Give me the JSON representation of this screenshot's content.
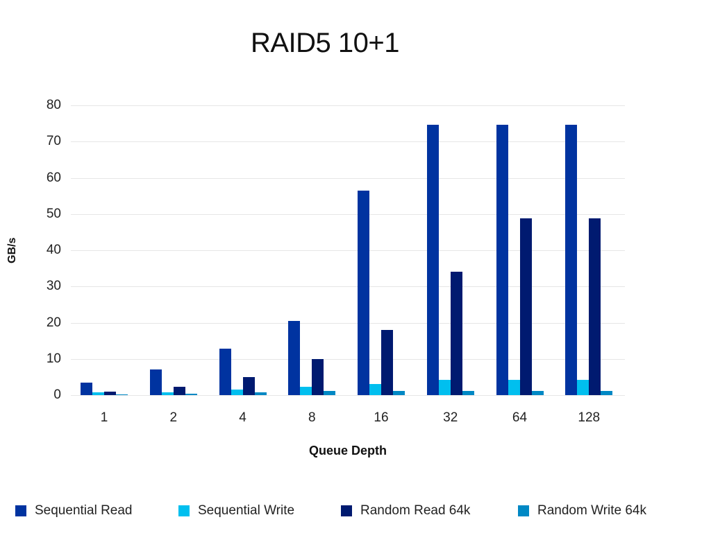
{
  "chart_data": {
    "type": "bar",
    "title": "RAID5 10+1",
    "xlabel": "Queue Depth",
    "ylabel": "GB/s",
    "ylim": [
      0,
      80
    ],
    "yticks": [
      0,
      10,
      20,
      30,
      40,
      50,
      60,
      70,
      80
    ],
    "grid": true,
    "legend_position": "bottom",
    "categories": [
      "1",
      "2",
      "4",
      "8",
      "16",
      "32",
      "64",
      "128"
    ],
    "series": [
      {
        "name": "Sequential Read",
        "color": "#0033a0",
        "values": [
          3.4,
          7.1,
          12.8,
          20.5,
          56.4,
          74.6,
          74.6,
          74.6
        ]
      },
      {
        "name": "Sequential Write",
        "color": "#00bfef",
        "values": [
          0.8,
          0.8,
          1.5,
          2.3,
          3.0,
          4.2,
          4.2,
          4.2
        ]
      },
      {
        "name": "Random Read 64k",
        "color": "#001a70",
        "values": [
          1.0,
          2.3,
          5.0,
          9.9,
          18.0,
          34.0,
          48.8,
          48.8
        ]
      },
      {
        "name": "Random Write 64k",
        "color": "#0088c4",
        "values": [
          0.2,
          0.4,
          0.8,
          1.1,
          1.1,
          1.1,
          1.1,
          1.1
        ]
      }
    ]
  },
  "legend": [
    {
      "label": "Sequential Read",
      "color": "#0033a0"
    },
    {
      "label": "Sequential Write",
      "color": "#00bfef"
    },
    {
      "label": "Random Read 64k",
      "color": "#001a70"
    },
    {
      "label": "Random Write 64k",
      "color": "#0088c4"
    }
  ]
}
